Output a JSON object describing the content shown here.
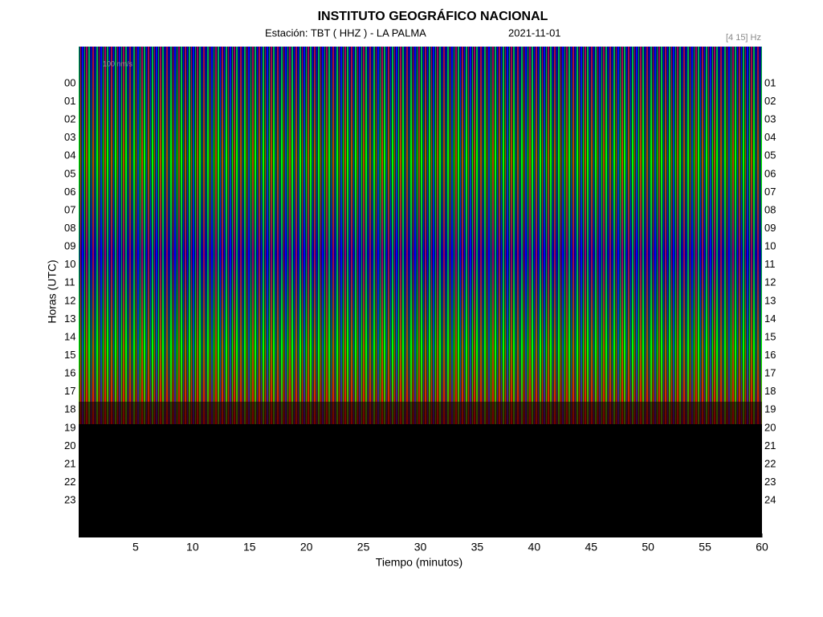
{
  "chart_data": {
    "type": "helicorder",
    "title": "INSTITUTO GEOGRÁFICO NACIONAL",
    "subtitle": "Estación:  TBT ( HHZ ) - LA PALMA",
    "date": "2021-11-01",
    "band": "[4 15] Hz",
    "scale_label": "100 nm/s",
    "x_label": "Tiempo (minutos)",
    "y_label": "Horas (UTC)",
    "xlim": [
      0,
      60
    ],
    "xticks": [
      5,
      10,
      15,
      20,
      25,
      30,
      35,
      40,
      45,
      50,
      55,
      60
    ],
    "left_labels": [
      "00",
      "01",
      "02",
      "03",
      "04",
      "05",
      "06",
      "07",
      "08",
      "09",
      "10",
      "11",
      "12",
      "13",
      "14",
      "15",
      "16",
      "17",
      "18",
      "19",
      "20",
      "21",
      "22",
      "23"
    ],
    "right_labels": [
      "01",
      "02",
      "03",
      "04",
      "05",
      "06",
      "07",
      "08",
      "09",
      "10",
      "11",
      "12",
      "13",
      "14",
      "15",
      "16",
      "17",
      "18",
      "19",
      "20",
      "21",
      "22",
      "23",
      "24"
    ]
  }
}
